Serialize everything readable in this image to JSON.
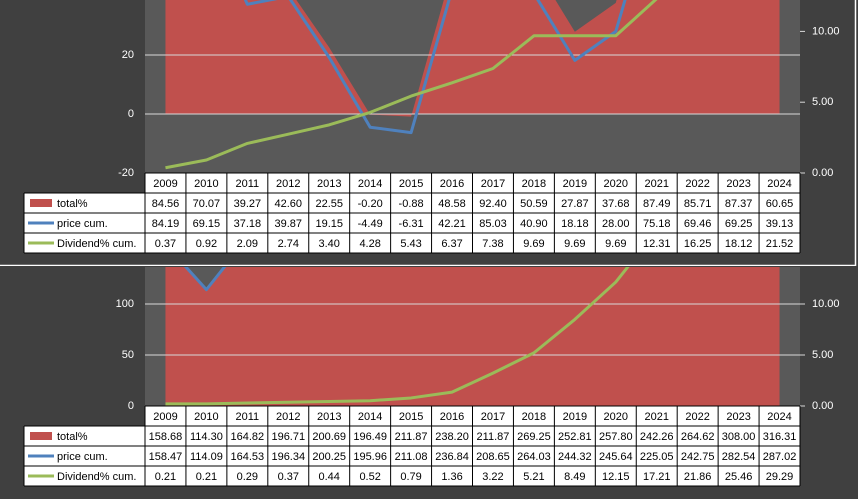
{
  "chart_data": [
    {
      "type": "combo",
      "categories": [
        "2009",
        "2010",
        "2011",
        "2012",
        "2013",
        "2014",
        "2015",
        "2016",
        "2017",
        "2018",
        "2019",
        "2020",
        "2021",
        "2022",
        "2023",
        "2024"
      ],
      "ylim": [
        -20,
        100
      ],
      "yticks": [
        -20,
        0,
        20
      ],
      "y2lim": [
        0,
        25
      ],
      "y2ticks": [
        {
          "value": 0,
          "label": "0.00"
        },
        {
          "value": 5,
          "label": "5.00"
        },
        {
          "value": 10,
          "label": "10.00"
        }
      ],
      "grid": true,
      "series": [
        {
          "name": "total%",
          "type": "area",
          "color": "#c0504d",
          "values": [
            84.56,
            70.07,
            39.27,
            42.6,
            22.55,
            -0.2,
            -0.88,
            48.58,
            92.4,
            50.59,
            27.87,
            37.68,
            87.49,
            85.71,
            87.37,
            60.65
          ],
          "value_labels": [
            "84.56",
            "70.07",
            "39.27",
            "42.60",
            "22.55",
            "-0.20",
            "-0.88",
            "48.58",
            "92.40",
            "50.59",
            "27.87",
            "37.68",
            "87.49",
            "85.71",
            "87.37",
            "60.65"
          ]
        },
        {
          "name": "price cum.",
          "type": "line",
          "color": "#4f81bd",
          "values": [
            84.19,
            69.15,
            37.18,
            39.87,
            19.15,
            -4.49,
            -6.31,
            42.21,
            85.03,
            40.9,
            18.18,
            28,
            75.18,
            69.46,
            69.25,
            39.13
          ],
          "value_labels": [
            "84.19",
            "69.15",
            "37.18",
            "39.87",
            "19.15",
            "-4.49",
            "-6.31",
            "42.21",
            "85.03",
            "40.90",
            "18.18",
            "28.00",
            "75.18",
            "69.46",
            "69.25",
            "39.13"
          ]
        },
        {
          "name": "Dividend% cum.",
          "type": "line",
          "axis": "y2",
          "color": "#9bbb59",
          "values": [
            0.37,
            0.92,
            2.09,
            2.74,
            3.4,
            4.28,
            5.43,
            6.37,
            7.38,
            9.69,
            9.69,
            9.69,
            12.31,
            16.25,
            18.12,
            21.52
          ],
          "value_labels": [
            "0.37",
            "0.92",
            "2.09",
            "2.74",
            "3.40",
            "4.28",
            "5.43",
            "6.37",
            "7.38",
            "9.69",
            "9.69",
            "9.69",
            "12.31",
            "16.25",
            "18.12",
            "21.52"
          ]
        }
      ]
    },
    {
      "type": "combo",
      "categories": [
        "2009",
        "2010",
        "2011",
        "2012",
        "2013",
        "2014",
        "2015",
        "2016",
        "2017",
        "2018",
        "2019",
        "2020",
        "2021",
        "2022",
        "2023",
        "2024"
      ],
      "ylim": [
        0,
        350
      ],
      "yticks": [
        0,
        50,
        100
      ],
      "y2lim": [
        0,
        35
      ],
      "y2ticks": [
        {
          "value": 0,
          "label": "0.00"
        },
        {
          "value": 5,
          "label": "5.00"
        },
        {
          "value": 10,
          "label": "10.00"
        }
      ],
      "grid": true,
      "series": [
        {
          "name": "total%",
          "type": "area",
          "color": "#c0504d",
          "values": [
            158.68,
            114.3,
            164.82,
            196.71,
            200.69,
            196.49,
            211.87,
            238.2,
            211.87,
            269.25,
            252.81,
            257.8,
            242.26,
            264.62,
            308,
            316.31
          ],
          "value_labels": [
            "158.68",
            "114.30",
            "164.82",
            "196.71",
            "200.69",
            "196.49",
            "211.87",
            "238.20",
            "211.87",
            "269.25",
            "252.81",
            "257.80",
            "242.26",
            "264.62",
            "308.00",
            "316.31"
          ]
        },
        {
          "name": "price cum.",
          "type": "line",
          "color": "#4f81bd",
          "values": [
            158.47,
            114.09,
            164.53,
            196.34,
            200.25,
            195.96,
            211.08,
            236.84,
            208.65,
            264.03,
            244.32,
            245.64,
            225.05,
            242.75,
            282.54,
            287.02
          ],
          "value_labels": [
            "158.47",
            "114.09",
            "164.53",
            "196.34",
            "200.25",
            "195.96",
            "211.08",
            "236.84",
            "208.65",
            "264.03",
            "244.32",
            "245.64",
            "225.05",
            "242.75",
            "282.54",
            "287.02"
          ]
        },
        {
          "name": "Dividend% cum.",
          "type": "line",
          "axis": "y2",
          "color": "#9bbb59",
          "values": [
            0.21,
            0.21,
            0.29,
            0.37,
            0.44,
            0.52,
            0.79,
            1.36,
            3.22,
            5.21,
            8.49,
            12.15,
            17.21,
            21.86,
            25.46,
            29.29
          ],
          "value_labels": [
            "0.21",
            "0.21",
            "0.29",
            "0.37",
            "0.44",
            "0.52",
            "0.79",
            "1.36",
            "3.22",
            "5.21",
            "8.49",
            "12.15",
            "17.21",
            "21.86",
            "25.46",
            "29.29"
          ]
        }
      ]
    }
  ]
}
